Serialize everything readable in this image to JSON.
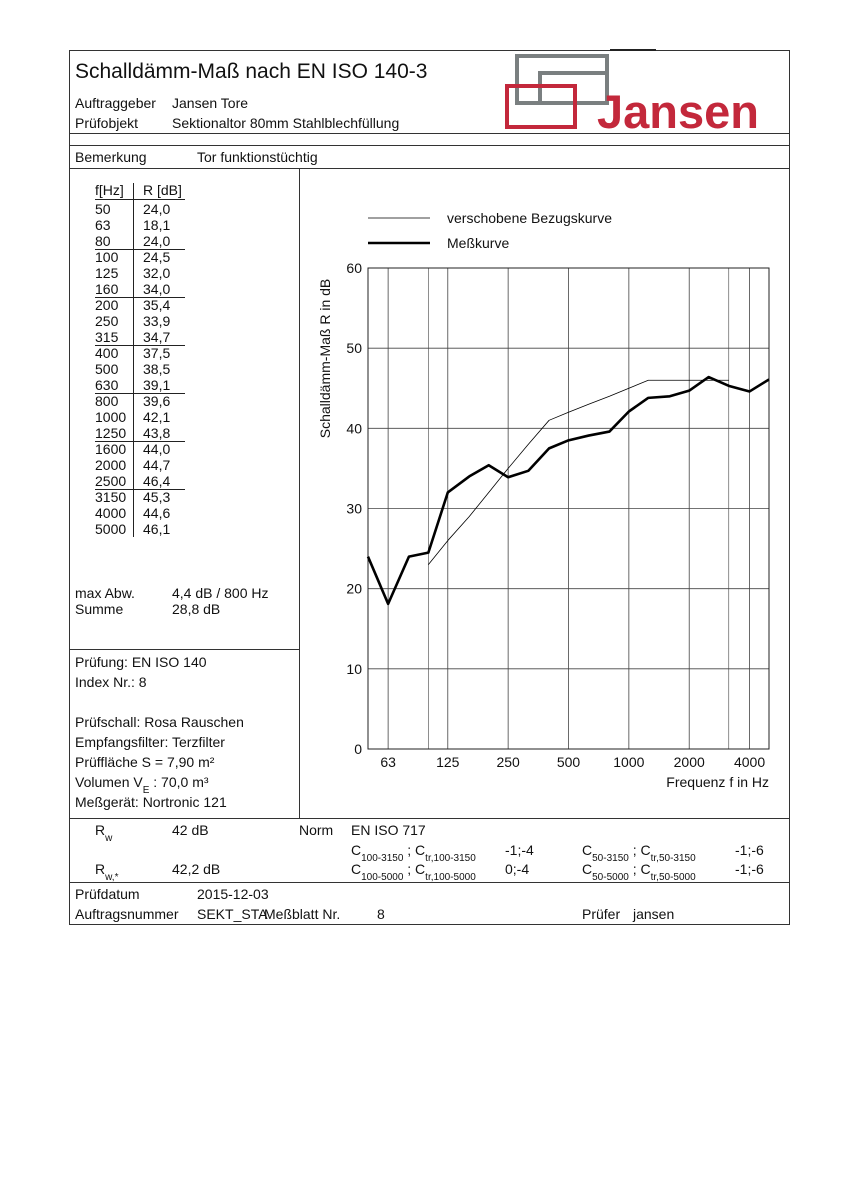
{
  "header": {
    "title": "Schalldämm-Maß nach EN ISO 140-3",
    "client_label": "Auftraggeber",
    "client": "Jansen Tore",
    "object_label": "Prüfobjekt",
    "object": "Sektionaltor 80mm Stahlblechfüllung",
    "logo": "Jansen"
  },
  "remark": {
    "label": "Bemerkung",
    "text": "Tor funktionstüchtig"
  },
  "table": {
    "columns": [
      "f[Hz]",
      "R [dB]"
    ],
    "rows": [
      [
        "50",
        "24,0"
      ],
      [
        "63",
        "18,1"
      ],
      [
        "80",
        "24,0"
      ],
      [
        "100",
        "24,5"
      ],
      [
        "125",
        "32,0"
      ],
      [
        "160",
        "34,0"
      ],
      [
        "200",
        "35,4"
      ],
      [
        "250",
        "33,9"
      ],
      [
        "315",
        "34,7"
      ],
      [
        "400",
        "37,5"
      ],
      [
        "500",
        "38,5"
      ],
      [
        "630",
        "39,1"
      ],
      [
        "800",
        "39,6"
      ],
      [
        "1000",
        "42,1"
      ],
      [
        "1250",
        "43,8"
      ],
      [
        "1600",
        "44,0"
      ],
      [
        "2000",
        "44,7"
      ],
      [
        "2500",
        "46,4"
      ],
      [
        "3150",
        "45,3"
      ],
      [
        "4000",
        "44,6"
      ],
      [
        "5000",
        "46,1"
      ]
    ]
  },
  "summary": {
    "max_dev_label": "max Abw.",
    "max_dev": "4,4 dB / 800 Hz",
    "sum_label": "Summe",
    "sum": "28,8 dB"
  },
  "test_info": [
    [
      {
        "t": "Prüfung: EN ISO 140"
      }
    ],
    [
      {
        "t": "Index Nr.: 8"
      }
    ],
    [
      {
        "t": "Prüfschall: Rosa Rauschen"
      }
    ],
    [
      {
        "t": "Empfangsfilter: Terzfilter"
      }
    ],
    [
      {
        "t": "Prüffläche S = 7,90 m²"
      }
    ],
    [
      {
        "t": "Volumen V"
      },
      {
        "sub": "E"
      },
      {
        "t": " : 70,0 m³"
      }
    ],
    [
      {
        "t": "Meßgerät: Nortronic 121"
      }
    ]
  ],
  "chart_data": {
    "type": "line",
    "x_label": "Frequenz f in Hz",
    "y_label": "Schalldämm-Maß R in dB",
    "x": [
      50,
      63,
      80,
      100,
      125,
      160,
      200,
      250,
      315,
      400,
      500,
      630,
      800,
      1000,
      1250,
      1600,
      2000,
      2500,
      3150,
      4000,
      5000
    ],
    "series": [
      {
        "name": "verschobene Bezugskurve",
        "color": "#000000",
        "line_width": 0.8,
        "values": [
          null,
          null,
          null,
          23,
          26,
          29,
          32,
          35,
          38,
          41,
          42,
          43,
          44,
          45,
          46,
          46,
          46,
          46,
          46,
          null,
          null
        ]
      },
      {
        "name": "Meßkurve",
        "color": "#000000",
        "line_width": 2.6,
        "values": [
          24.0,
          18.1,
          24.0,
          24.5,
          32.0,
          34.0,
          35.4,
          33.9,
          34.7,
          37.5,
          38.5,
          39.1,
          39.6,
          42.1,
          43.8,
          44.0,
          44.7,
          46.4,
          45.3,
          44.6,
          46.1
        ]
      }
    ],
    "x_scale": "log",
    "xlim": [
      50,
      5000
    ],
    "xticks": [
      63,
      125,
      250,
      500,
      1000,
      2000,
      4000
    ],
    "x_range_lines": [
      100,
      3150
    ],
    "ylim": [
      0,
      60
    ],
    "yticks": [
      0,
      10,
      20,
      30,
      40,
      50,
      60
    ],
    "grid": true
  },
  "results": {
    "rw": [
      {
        "t": "R"
      },
      {
        "sub": "w"
      }
    ],
    "rw_value": "42 dB",
    "rw_star": [
      {
        "t": "R"
      },
      {
        "sub": "w,*"
      }
    ],
    "rw_star_value": "42,2 dB",
    "norm_label": "Norm",
    "norm": "EN ISO 717",
    "terms": [
      {
        "label": [
          {
            "t": "C"
          },
          {
            "sub": "100-3150"
          },
          {
            "t": " ; C"
          },
          {
            "sub": "tr,100-3150"
          }
        ],
        "value": "-1;-4"
      },
      {
        "label": [
          {
            "t": "C"
          },
          {
            "sub": "50-3150"
          },
          {
            "t": " ; C"
          },
          {
            "sub": "tr,50-3150"
          }
        ],
        "value": "-1;-6"
      },
      {
        "label": [
          {
            "t": "C"
          },
          {
            "sub": "100-5000"
          },
          {
            "t": " ; C"
          },
          {
            "sub": "tr,100-5000"
          }
        ],
        "value": "0;-4"
      },
      {
        "label": [
          {
            "t": "C"
          },
          {
            "sub": "50-5000"
          },
          {
            "t": " ; C"
          },
          {
            "sub": "tr,50-5000"
          }
        ],
        "value": "-1;-6"
      }
    ]
  },
  "footer": {
    "date_label": "Prüfdatum",
    "date": "2015-12-03",
    "order_label": "Auftragsnummer",
    "order": "SEKT_STA",
    "sheet_label": "Meßblatt Nr.",
    "sheet": "8",
    "tester_label": "Prüfer",
    "tester": "jansen"
  }
}
